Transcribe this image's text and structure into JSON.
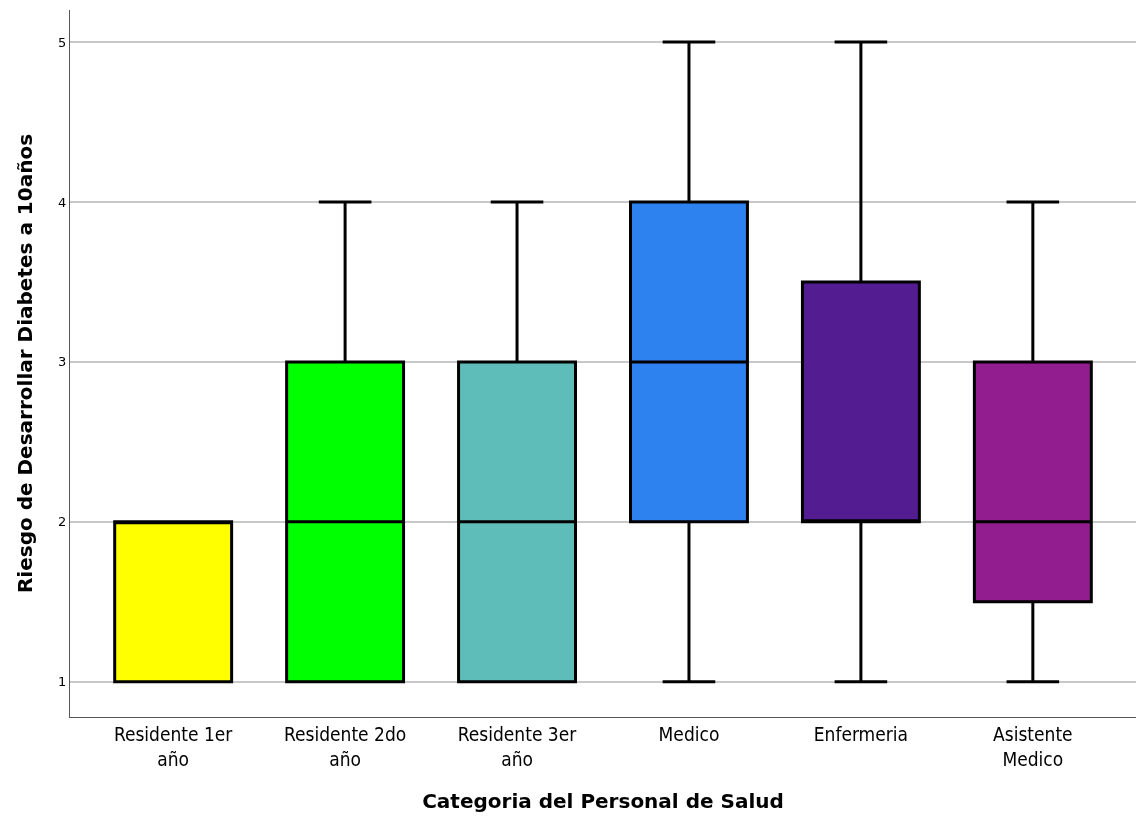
{
  "chart_data": {
    "type": "box",
    "xlabel": "Categoria del Personal de Salud",
    "ylabel": "Riesgo de Desarrollar Diabetes a 10años",
    "categories": [
      "Residente 1er año",
      "Residente 2do año",
      "Residente 3er año",
      "Medico",
      "Enfermeria",
      "Asistente Medico"
    ],
    "colors": [
      "#ffff00",
      "#00ff00",
      "#5fbdb9",
      "#2e82f0",
      "#531c91",
      "#921d8f"
    ],
    "boxes": [
      {
        "low": 1,
        "q1": 1,
        "median": 2,
        "q3": 2,
        "high": 2
      },
      {
        "low": 1,
        "q1": 1,
        "median": 2,
        "q3": 3,
        "high": 4
      },
      {
        "low": 1,
        "q1": 1,
        "median": 2,
        "q3": 3,
        "high": 4
      },
      {
        "low": 1,
        "q1": 2,
        "median": 3,
        "q3": 4,
        "high": 5
      },
      {
        "low": 1,
        "q1": 2,
        "median": 2,
        "q3": 3.5,
        "high": 5
      },
      {
        "low": 1,
        "q1": 1.5,
        "median": 2,
        "q3": 3,
        "high": 4
      }
    ],
    "ylim": [
      0.78,
      5.2
    ],
    "yticks": [
      1,
      2,
      3,
      4,
      5
    ],
    "grid": "y",
    "legend": false
  }
}
